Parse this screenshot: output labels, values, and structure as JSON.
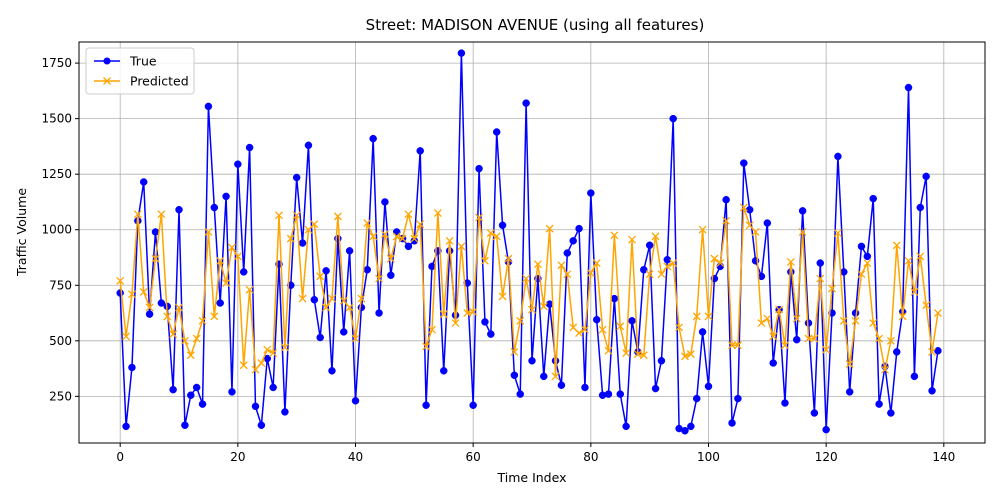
{
  "chart_data": {
    "type": "line",
    "title": "Street: MADISON AVENUE (using all features)",
    "xlabel": "Time Index",
    "ylabel": "Traffic Volume",
    "xlim": [
      -7,
      147
    ],
    "ylim": [
      40,
      1845
    ],
    "xticks": [
      0,
      20,
      40,
      60,
      80,
      100,
      120,
      140
    ],
    "yticks": [
      250,
      500,
      750,
      1000,
      1250,
      1500,
      1750
    ],
    "grid": true,
    "legend_position": "top-left",
    "series": [
      {
        "name": "True",
        "color": "#0000ff",
        "marker": "circle",
        "values": [
          715,
          115,
          380,
          1040,
          1215,
          620,
          990,
          670,
          655,
          280,
          1090,
          120,
          255,
          290,
          215,
          1555,
          1100,
          670,
          1150,
          270,
          1295,
          810,
          1370,
          205,
          120,
          420,
          290,
          845,
          180,
          750,
          1235,
          940,
          1380,
          685,
          515,
          815,
          365,
          960,
          540,
          905,
          230,
          650,
          820,
          1410,
          625,
          1125,
          795,
          990,
          960,
          925,
          950,
          1355,
          210,
          835,
          905,
          365,
          905,
          615,
          1795,
          760,
          210,
          1275,
          585,
          530,
          1440,
          1020,
          855,
          345,
          260,
          1570,
          410,
          780,
          340,
          665,
          410,
          300,
          895,
          950,
          1005,
          290,
          1165,
          595,
          255,
          260,
          690,
          260,
          115,
          590,
          450,
          820,
          930,
          285,
          410,
          865,
          1500,
          105,
          95,
          115,
          240,
          540,
          295,
          780,
          835,
          1135,
          130,
          240,
          1300,
          1090,
          860,
          790,
          1030,
          400,
          640,
          220,
          810,
          505,
          1085,
          580,
          175,
          850,
          100,
          625,
          1330,
          810,
          270,
          625,
          925,
          880,
          1140,
          215,
          385,
          175,
          450,
          630,
          1640,
          340,
          1100,
          1240,
          275,
          455
        ]
      },
      {
        "name": "Predicted",
        "color": "#ffa500",
        "marker": "x",
        "values": [
          770,
          520,
          710,
          1070,
          720,
          650,
          870,
          1070,
          610,
          530,
          650,
          500,
          435,
          510,
          590,
          990,
          610,
          860,
          760,
          920,
          880,
          390,
          730,
          370,
          400,
          460,
          445,
          1065,
          470,
          960,
          1065,
          690,
          1000,
          1025,
          790,
          650,
          690,
          1060,
          680,
          650,
          510,
          690,
          1030,
          970,
          780,
          980,
          870,
          970,
          960,
          1070,
          960,
          1025,
          475,
          550,
          1075,
          620,
          950,
          580,
          925,
          625,
          630,
          1055,
          860,
          985,
          970,
          700,
          870,
          450,
          590,
          780,
          640,
          845,
          655,
          1005,
          340,
          840,
          800,
          560,
          535,
          550,
          805,
          850,
          550,
          455,
          975,
          565,
          445,
          955,
          440,
          435,
          800,
          970,
          800,
          835,
          850,
          560,
          430,
          440,
          610,
          1000,
          610,
          870,
          850,
          1040,
          480,
          480,
          1100,
          1020,
          990,
          580,
          600,
          520,
          640,
          480,
          855,
          600,
          990,
          510,
          510,
          780,
          460,
          735,
          985,
          590,
          395,
          590,
          800,
          850,
          580,
          510,
          370,
          500,
          930,
          610,
          860,
          720,
          880,
          660,
          450,
          625
        ]
      }
    ]
  }
}
